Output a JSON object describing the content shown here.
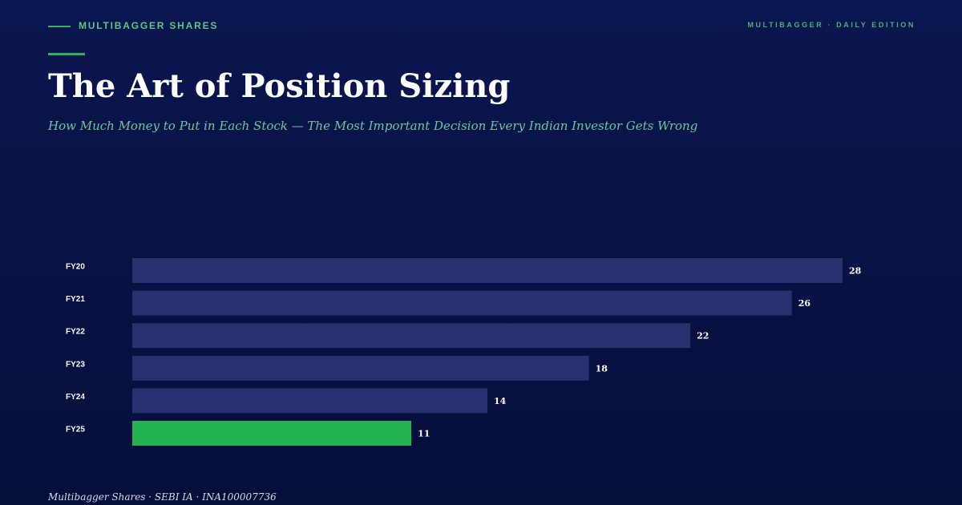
{
  "header": {
    "brand": "MULTIBAGGER SHARES",
    "edition": "MULTIBAGGER · DAILY EDITION"
  },
  "title": "The Art of Position Sizing",
  "subtitle": "How Much Money to Put in Each Stock — The Most Important Decision Every Indian Investor Gets Wrong",
  "footer": "Multibagger Shares · SEBI IA · INA100007736",
  "colors": {
    "background": "#081245",
    "bar": "#28306f",
    "highlight_bar": "#22b24f",
    "accent": "#2fb155",
    "subtitle": "#6cc79a"
  },
  "chart_data": {
    "type": "bar",
    "orientation": "horizontal",
    "categories": [
      "FY20",
      "FY21",
      "FY22",
      "FY23",
      "FY24",
      "FY25"
    ],
    "values": [
      28,
      26,
      22,
      18,
      14,
      11
    ],
    "highlight_index": 5,
    "xlim": [
      0,
      28
    ],
    "grid": false,
    "legend": "none"
  }
}
